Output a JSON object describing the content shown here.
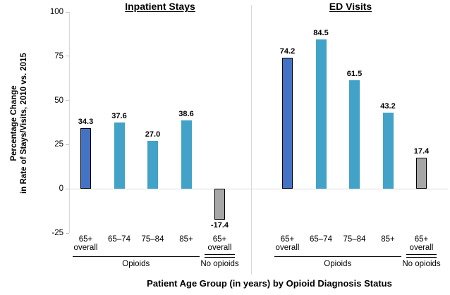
{
  "chart_data": {
    "type": "bar",
    "title": "",
    "xlabel": "Patient Age Group (in years) by Opioid Diagnosis Status",
    "ylabel_lines": [
      "Percentage Change",
      "in Rate of Stays/Visits, 2010 vs. 2015"
    ],
    "ylim": [
      -25,
      100
    ],
    "yticks": [
      100,
      75,
      50,
      25,
      0,
      -25
    ],
    "grid": "off",
    "legend": "none",
    "panels": [
      {
        "title": "Inpatient Stays",
        "groups": [
          {
            "label": "Opioids",
            "rule": "single",
            "bars": [
              {
                "category_lines": [
                  "65+",
                  "overall"
                ],
                "value": 34.3,
                "value_label": "34.3",
                "color": "dark_blue"
              },
              {
                "category_lines": [
                  "65–74"
                ],
                "value": 37.6,
                "value_label": "37.6",
                "color": "light_blue"
              },
              {
                "category_lines": [
                  "75–84"
                ],
                "value": 27.0,
                "value_label": "27.0",
                "color": "light_blue"
              },
              {
                "category_lines": [
                  "85+"
                ],
                "value": 38.6,
                "value_label": "38.6",
                "color": "light_blue"
              }
            ]
          },
          {
            "label": "No opioids",
            "rule": "double",
            "bars": [
              {
                "category_lines": [
                  "65+",
                  "overall"
                ],
                "value": -17.4,
                "value_label": "-17.4",
                "color": "gray"
              }
            ]
          }
        ]
      },
      {
        "title": "ED Visits",
        "groups": [
          {
            "label": "Opioids",
            "rule": "single",
            "bars": [
              {
                "category_lines": [
                  "65+",
                  "overall"
                ],
                "value": 74.2,
                "value_label": "74.2",
                "color": "dark_blue"
              },
              {
                "category_lines": [
                  "65–74"
                ],
                "value": 84.5,
                "value_label": "84.5",
                "color": "light_blue"
              },
              {
                "category_lines": [
                  "75–84"
                ],
                "value": 61.5,
                "value_label": "61.5",
                "color": "light_blue"
              },
              {
                "category_lines": [
                  "85+"
                ],
                "value": 43.2,
                "value_label": "43.2",
                "color": "light_blue"
              }
            ]
          },
          {
            "label": "No opioids",
            "rule": "double",
            "bars": [
              {
                "category_lines": [
                  "65+",
                  "overall"
                ],
                "value": 17.4,
                "value_label": "17.4",
                "color": "gray"
              }
            ]
          }
        ]
      }
    ],
    "colors": {
      "dark_blue": "#4472C4",
      "light_blue": "#42A2C8",
      "gray": "#A6A6A6",
      "bar_border": "#000000",
      "axis_line": "#D9D9D9",
      "tick_mark": "#C6C6C6",
      "rule_line": "#000000",
      "text": "#000000"
    }
  }
}
